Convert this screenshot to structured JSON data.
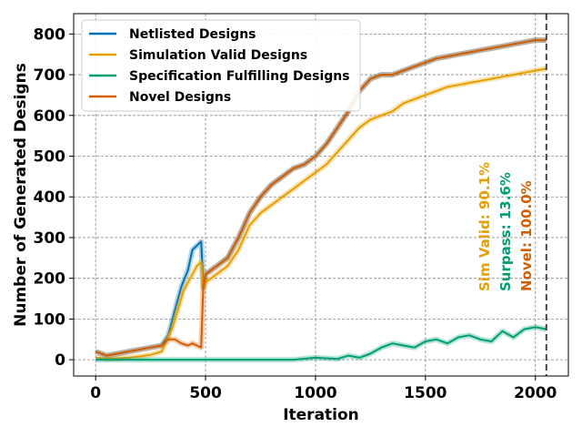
{
  "chart_data": {
    "type": "line",
    "title": "",
    "xlabel": "Iteration",
    "ylabel": "Number of Generated Designs",
    "xlim": [
      -100,
      2150
    ],
    "ylim": [
      -40,
      850
    ],
    "xticks": [
      0,
      500,
      1000,
      1500,
      2000
    ],
    "yticks": [
      0,
      100,
      200,
      300,
      400,
      500,
      600,
      700,
      800
    ],
    "grid": true,
    "legend_position": "top-left",
    "vline_x": 2050,
    "series": [
      {
        "name": "Netlisted Designs",
        "color": "#0072B2",
        "x": [
          0,
          50,
          100,
          150,
          200,
          250,
          300,
          330,
          360,
          390,
          420,
          440,
          460,
          480,
          490,
          500,
          550,
          600,
          650,
          700,
          750,
          800,
          850,
          900,
          950,
          1000,
          1050,
          1100,
          1150,
          1200,
          1250,
          1300,
          1350,
          1400,
          1450,
          1500,
          1550,
          1600,
          1650,
          1700,
          1750,
          1800,
          1850,
          1900,
          1950,
          2000,
          2050
        ],
        "y": [
          20,
          10,
          15,
          20,
          25,
          30,
          35,
          60,
          120,
          180,
          220,
          270,
          280,
          290,
          180,
          210,
          230,
          250,
          300,
          360,
          400,
          430,
          450,
          470,
          480,
          500,
          530,
          570,
          610,
          660,
          690,
          700,
          700,
          710,
          720,
          730,
          740,
          745,
          750,
          755,
          760,
          765,
          770,
          775,
          780,
          785,
          785
        ]
      },
      {
        "name": "Simulation Valid Designs",
        "color": "#E69F00",
        "x": [
          0,
          50,
          100,
          150,
          200,
          250,
          300,
          350,
          400,
          440,
          460,
          480,
          490,
          500,
          550,
          600,
          650,
          700,
          750,
          800,
          850,
          900,
          950,
          1000,
          1050,
          1100,
          1150,
          1200,
          1250,
          1300,
          1350,
          1400,
          1450,
          1500,
          1550,
          1600,
          1650,
          1700,
          1750,
          1800,
          1850,
          1900,
          1950,
          2000,
          2050
        ],
        "y": [
          5,
          2,
          3,
          5,
          8,
          12,
          20,
          80,
          170,
          210,
          230,
          240,
          175,
          190,
          210,
          230,
          270,
          330,
          360,
          380,
          400,
          420,
          440,
          460,
          480,
          510,
          540,
          570,
          590,
          600,
          610,
          630,
          640,
          650,
          660,
          670,
          675,
          680,
          685,
          690,
          695,
          700,
          705,
          710,
          715
        ]
      },
      {
        "name": "Specification Fulfilling Designs",
        "color": "#009E73",
        "x": [
          0,
          100,
          200,
          300,
          400,
          500,
          600,
          700,
          800,
          900,
          1000,
          1100,
          1150,
          1200,
          1250,
          1300,
          1350,
          1400,
          1450,
          1500,
          1550,
          1600,
          1650,
          1700,
          1750,
          1800,
          1850,
          1900,
          1950,
          2000,
          2050
        ],
        "y": [
          0,
          0,
          0,
          0,
          0,
          0,
          0,
          0,
          0,
          0,
          5,
          2,
          10,
          5,
          15,
          30,
          40,
          35,
          30,
          45,
          50,
          40,
          55,
          60,
          50,
          45,
          70,
          55,
          75,
          80,
          75
        ]
      },
      {
        "name": "Novel Designs",
        "color": "#D55E00",
        "x": [
          0,
          50,
          100,
          150,
          200,
          250,
          300,
          330,
          360,
          390,
          420,
          440,
          460,
          480,
          490,
          500,
          550,
          600,
          650,
          700,
          750,
          800,
          850,
          900,
          950,
          1000,
          1050,
          1100,
          1150,
          1200,
          1250,
          1300,
          1350,
          1400,
          1450,
          1500,
          1550,
          1600,
          1650,
          1700,
          1750,
          1800,
          1850,
          1900,
          1950,
          2000,
          2050
        ],
        "y": [
          20,
          10,
          15,
          20,
          25,
          30,
          35,
          50,
          50,
          40,
          35,
          40,
          35,
          30,
          180,
          210,
          230,
          250,
          300,
          360,
          400,
          430,
          450,
          470,
          480,
          500,
          530,
          570,
          610,
          660,
          690,
          700,
          700,
          710,
          720,
          730,
          740,
          745,
          750,
          755,
          760,
          765,
          770,
          775,
          780,
          785,
          785
        ]
      }
    ],
    "annotations": [
      {
        "text": "Sim Valid: 90.1%",
        "color": "#E69F00",
        "x": 1790
      },
      {
        "text": "Surpass: 13.6%",
        "color": "#009E73",
        "x": 1885
      },
      {
        "text": "Novel: 100.0%",
        "color": "#D55E00",
        "x": 1980
      }
    ]
  }
}
